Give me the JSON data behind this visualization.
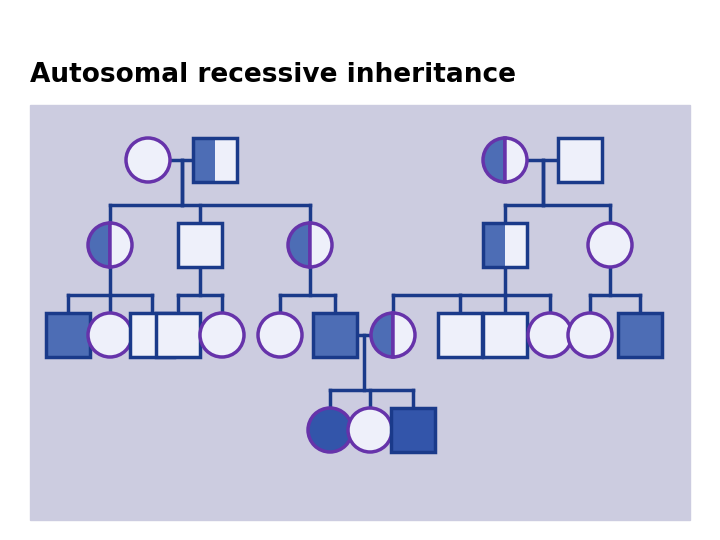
{
  "title": "Autosomal recessive inheritance",
  "bg_color": "#cccce0",
  "line_color": "#1a3a8a",
  "purple_edge": "#6633aa",
  "fill_blue": "#4d6db5",
  "fill_white": "#eef0fa",
  "fill_dark_blue": "#3355aa",
  "title_color": "#000000"
}
